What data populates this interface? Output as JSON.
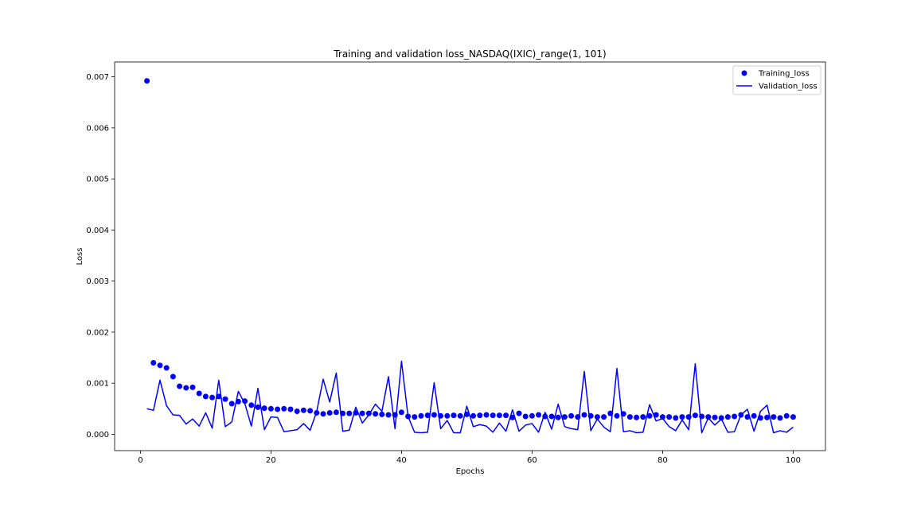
{
  "chart_data": {
    "type": "line",
    "title": "Training and validation loss_NASDAQ(IXIC)_range(1, 101)",
    "xlabel": "Epochs",
    "ylabel": "Loss",
    "xlim": [
      -3.95,
      104.95
    ],
    "ylim": [
      -0.00032,
      0.00729
    ],
    "x_ticks": [
      0,
      20,
      40,
      60,
      80,
      100
    ],
    "x_tick_labels": [
      "0",
      "20",
      "40",
      "60",
      "80",
      "100"
    ],
    "y_ticks": [
      0.0,
      0.001,
      0.002,
      0.003,
      0.004,
      0.005,
      0.006,
      0.007
    ],
    "y_tick_labels": [
      "0.000",
      "0.001",
      "0.002",
      "0.003",
      "0.004",
      "0.005",
      "0.006",
      "0.007"
    ],
    "grid": false,
    "legend_position": "top-right",
    "x": [
      1,
      2,
      3,
      4,
      5,
      6,
      7,
      8,
      9,
      10,
      11,
      12,
      13,
      14,
      15,
      16,
      17,
      18,
      19,
      20,
      21,
      22,
      23,
      24,
      25,
      26,
      27,
      28,
      29,
      30,
      31,
      32,
      33,
      34,
      35,
      36,
      37,
      38,
      39,
      40,
      41,
      42,
      43,
      44,
      45,
      46,
      47,
      48,
      49,
      50,
      51,
      52,
      53,
      54,
      55,
      56,
      57,
      58,
      59,
      60,
      61,
      62,
      63,
      64,
      65,
      66,
      67,
      68,
      69,
      70,
      71,
      72,
      73,
      74,
      75,
      76,
      77,
      78,
      79,
      80,
      81,
      82,
      83,
      84,
      85,
      86,
      87,
      88,
      89,
      90,
      91,
      92,
      93,
      94,
      95,
      96,
      97,
      98,
      99,
      100
    ],
    "series": [
      {
        "name": "Training_loss",
        "style": "markers",
        "color": "#0000ff",
        "values": [
          0.00692,
          0.0014,
          0.00135,
          0.0013,
          0.00113,
          0.00094,
          0.00091,
          0.00092,
          0.0008,
          0.00074,
          0.00072,
          0.00074,
          0.00069,
          0.0006,
          0.00064,
          0.00065,
          0.00057,
          0.00053,
          0.00051,
          0.0005,
          0.00049,
          0.0005,
          0.00049,
          0.00045,
          0.00047,
          0.00046,
          0.00042,
          0.0004,
          0.00042,
          0.00043,
          0.00041,
          0.00041,
          0.00042,
          0.00041,
          0.00041,
          0.0004,
          0.00039,
          0.00038,
          0.00038,
          0.00043,
          0.00035,
          0.00034,
          0.00036,
          0.00037,
          0.00038,
          0.00036,
          0.00036,
          0.00037,
          0.00036,
          0.00039,
          0.00036,
          0.00037,
          0.00038,
          0.00037,
          0.00037,
          0.00037,
          0.00033,
          0.00041,
          0.00035,
          0.00036,
          0.00038,
          0.00035,
          0.00035,
          0.00033,
          0.00034,
          0.00036,
          0.00034,
          0.00038,
          0.00036,
          0.00034,
          0.00034,
          0.00041,
          0.00036,
          0.0004,
          0.00034,
          0.00033,
          0.00034,
          0.00036,
          0.00038,
          0.00034,
          0.00034,
          0.00032,
          0.00034,
          0.00034,
          0.00037,
          0.00035,
          0.00034,
          0.00033,
          0.00032,
          0.00034,
          0.00035,
          0.00038,
          0.00034,
          0.00036,
          0.00032,
          0.00033,
          0.00034,
          0.00032,
          0.00036,
          0.00034
        ]
      },
      {
        "name": "Validation_loss",
        "style": "line",
        "color": "#0000ff",
        "values": [
          0.0005,
          0.00047,
          0.00106,
          0.00056,
          0.00038,
          0.00037,
          0.0002,
          0.0003,
          0.00016,
          0.00042,
          0.00012,
          0.00106,
          0.00015,
          0.00024,
          0.00084,
          0.0006,
          0.00016,
          0.0009,
          9e-05,
          0.00034,
          0.00033,
          5e-05,
          7e-05,
          9e-05,
          0.00021,
          8e-05,
          0.00044,
          0.00108,
          0.00063,
          0.0012,
          6e-05,
          8e-05,
          0.00053,
          0.00022,
          0.00038,
          0.00059,
          0.00045,
          0.00113,
          0.00011,
          0.00143,
          0.00035,
          4e-05,
          3e-05,
          4e-05,
          0.00101,
          0.00011,
          0.00027,
          3e-05,
          3e-05,
          0.00055,
          0.00015,
          0.00019,
          0.00016,
          4e-05,
          0.00022,
          6e-05,
          0.00048,
          6e-05,
          0.00018,
          0.00021,
          4e-05,
          0.00043,
          0.0001,
          0.00059,
          0.00015,
          0.00011,
          9e-05,
          0.00123,
          7e-05,
          0.0003,
          0.00014,
          5e-05,
          0.00129,
          5e-05,
          7e-05,
          3e-05,
          4e-05,
          0.00058,
          0.00026,
          0.00031,
          0.00015,
          7e-05,
          0.00028,
          9e-05,
          0.00138,
          3e-05,
          0.00032,
          0.00018,
          0.0003,
          4e-05,
          5e-05,
          0.00038,
          0.00049,
          6e-05,
          0.00045,
          0.00057,
          3e-05,
          7e-05,
          4e-05,
          0.00014
        ]
      }
    ]
  }
}
